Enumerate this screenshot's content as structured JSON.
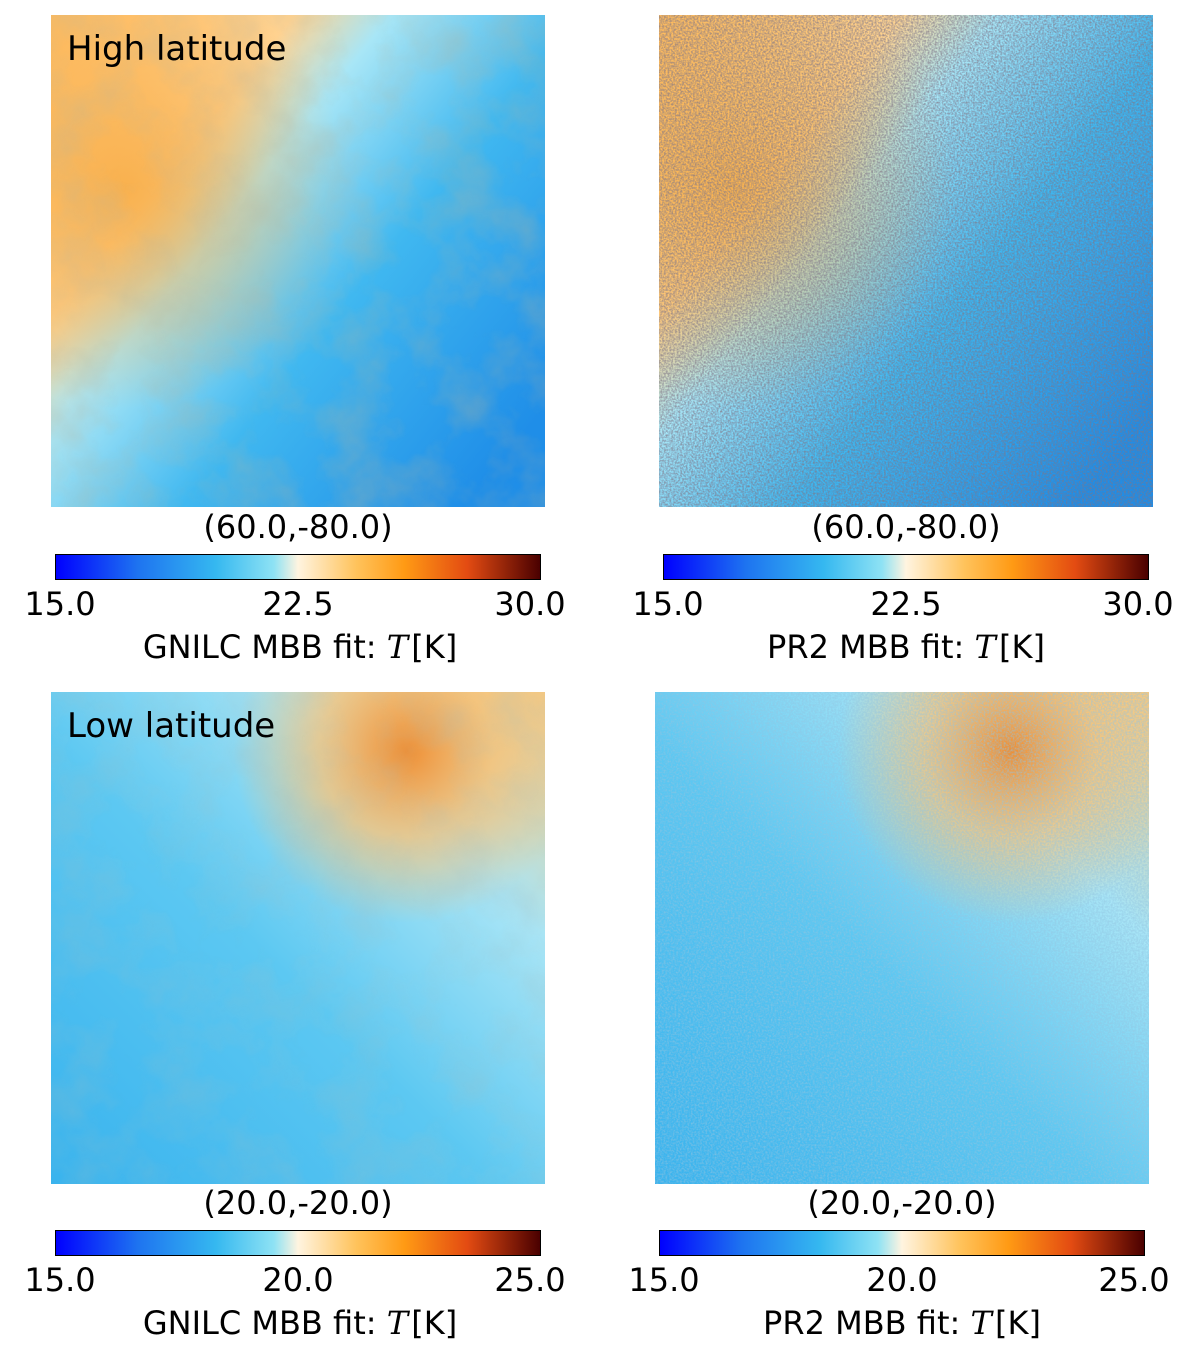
{
  "panels": [
    {
      "label": "High latitude",
      "coord": "(60.0,-80.0)",
      "colorbar": {
        "min": "15.0",
        "mid": "22.5",
        "max": "30.0",
        "prefix": "GNILC MBB fit: ",
        "symbol": "T",
        "unit": "[K]"
      }
    },
    {
      "label": "",
      "coord": "(60.0,-80.0)",
      "colorbar": {
        "min": "15.0",
        "mid": "22.5",
        "max": "30.0",
        "prefix": "PR2 MBB fit: ",
        "symbol": "T",
        "unit": "[K]"
      }
    },
    {
      "label": "Low latitude",
      "coord": "(20.0,-20.0)",
      "colorbar": {
        "min": "15.0",
        "mid": "20.0",
        "max": "25.0",
        "prefix": "GNILC MBB fit: ",
        "symbol": "T",
        "unit": "[K]"
      }
    },
    {
      "label": "",
      "coord": "(20.0,-20.0)",
      "colorbar": {
        "min": "15.0",
        "mid": "20.0",
        "max": "25.0",
        "prefix": "PR2 MBB fit: ",
        "symbol": "T",
        "unit": "[K]"
      }
    }
  ],
  "chart_data": [
    {
      "type": "heatmap",
      "title": "High latitude",
      "quantity": "T",
      "unit": "K",
      "method": "GNILC MBB fit",
      "center": "(60.0,-80.0)",
      "colorbar_range": [
        15.0,
        30.0
      ],
      "colorbar_ticks": [
        15.0,
        22.5,
        30.0
      ]
    },
    {
      "type": "heatmap",
      "title": "",
      "quantity": "T",
      "unit": "K",
      "method": "PR2 MBB fit",
      "center": "(60.0,-80.0)",
      "colorbar_range": [
        15.0,
        30.0
      ],
      "colorbar_ticks": [
        15.0,
        22.5,
        30.0
      ]
    },
    {
      "type": "heatmap",
      "title": "Low latitude",
      "quantity": "T",
      "unit": "K",
      "method": "GNILC MBB fit",
      "center": "(20.0,-20.0)",
      "colorbar_range": [
        15.0,
        25.0
      ],
      "colorbar_ticks": [
        15.0,
        20.0,
        25.0
      ]
    },
    {
      "type": "heatmap",
      "title": "",
      "quantity": "T",
      "unit": "K",
      "method": "PR2 MBB fit",
      "center": "(20.0,-20.0)",
      "colorbar_range": [
        15.0,
        25.0
      ],
      "colorbar_ticks": [
        15.0,
        20.0,
        25.0
      ]
    }
  ],
  "colors": {
    "deep_blue": "#0000ff",
    "mid_blue": "#1e88e5",
    "light_blue": "#5fd0ef",
    "neutral": "#fff4e0",
    "orange": "#ffa726",
    "red_orange": "#e64a19",
    "dark_red": "#4a0000"
  }
}
